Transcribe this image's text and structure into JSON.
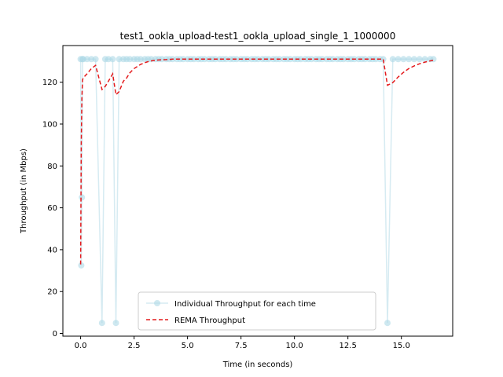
{
  "chart_data": {
    "type": "line",
    "title": "test1_ookla_upload-test1_ookla_upload_single_1_1000000",
    "xlabel": "Time (in seconds)",
    "ylabel": "Throughput (in Mbps)",
    "xlim": [
      -0.83,
      17.4
    ],
    "ylim": [
      -1.3,
      137.5
    ],
    "xticks": [
      0.0,
      2.5,
      5.0,
      7.5,
      10.0,
      12.5,
      15.0
    ],
    "xtick_labels": [
      "0.0",
      "2.5",
      "5.0",
      "7.5",
      "10.0",
      "12.5",
      "15.0"
    ],
    "yticks": [
      0,
      20,
      40,
      60,
      80,
      100,
      120
    ],
    "ytick_labels": [
      "0",
      "20",
      "40",
      "60",
      "80",
      "100",
      "120"
    ],
    "grid": false,
    "legend_position": "bottom-center",
    "series": [
      {
        "name": "Individual Throughput for each time",
        "style": "line-with-markers",
        "color": "#add8e6",
        "x": [
          0.0,
          0.03,
          0.06,
          0.09,
          0.12,
          0.3,
          0.5,
          0.7,
          1.0,
          1.15,
          1.3,
          1.5,
          1.65,
          1.8,
          2.0,
          2.15,
          2.3,
          2.5,
          2.65,
          2.8,
          3.0,
          3.15,
          3.3,
          3.5,
          3.65,
          3.8,
          4.0,
          4.15,
          4.3,
          4.5,
          4.65,
          4.8,
          5.0,
          5.15,
          5.3,
          5.5,
          5.65,
          5.8,
          6.0,
          6.15,
          6.3,
          6.5,
          6.65,
          6.8,
          7.0,
          7.15,
          7.3,
          7.5,
          7.65,
          7.8,
          8.0,
          8.15,
          8.3,
          8.5,
          8.65,
          8.8,
          9.0,
          9.15,
          9.3,
          9.5,
          9.65,
          9.8,
          10.0,
          10.15,
          10.3,
          10.5,
          10.65,
          10.8,
          11.0,
          11.15,
          11.3,
          11.5,
          11.65,
          11.8,
          12.0,
          12.15,
          12.3,
          12.5,
          12.65,
          12.8,
          13.0,
          13.15,
          13.3,
          13.5,
          13.65,
          13.8,
          14.0,
          14.15,
          14.35,
          14.6,
          14.85,
          15.1,
          15.35,
          15.6,
          15.85,
          16.1,
          16.35,
          16.5
        ],
        "y": [
          131,
          32.5,
          65,
          131,
          131,
          131,
          131,
          131,
          5,
          131,
          131,
          131,
          5,
          131,
          131,
          131,
          131,
          131,
          131,
          131,
          131,
          131,
          131,
          131,
          131,
          131,
          131,
          131,
          131,
          131,
          131,
          131,
          131,
          131,
          131,
          131,
          131,
          131,
          131,
          131,
          131,
          131,
          131,
          131,
          131,
          131,
          131,
          131,
          131,
          131,
          131,
          131,
          131,
          131,
          131,
          131,
          131,
          131,
          131,
          131,
          131,
          131,
          131,
          131,
          131,
          131,
          131,
          131,
          131,
          131,
          131,
          131,
          131,
          131,
          131,
          131,
          131,
          131,
          131,
          131,
          131,
          131,
          131,
          131,
          131,
          131,
          131,
          131,
          5,
          131,
          131,
          131,
          131,
          131,
          131,
          131,
          131,
          131
        ]
      },
      {
        "name": "REMA Throughput",
        "style": "dashed-line",
        "color": "#e41a1c",
        "x": [
          0.0,
          0.03,
          0.06,
          0.09,
          0.12,
          0.3,
          0.5,
          0.7,
          1.0,
          1.15,
          1.3,
          1.5,
          1.65,
          1.8,
          2.0,
          2.15,
          2.3,
          2.5,
          2.65,
          2.8,
          3.0,
          3.15,
          3.3,
          3.5,
          3.65,
          3.8,
          4.0,
          4.15,
          4.3,
          4.5,
          4.65,
          4.8,
          5.0,
          5.15,
          5.3,
          5.5,
          5.65,
          5.8,
          6.0,
          6.15,
          6.3,
          6.5,
          6.65,
          6.8,
          7.0,
          7.15,
          7.3,
          7.5,
          7.65,
          7.8,
          8.0,
          8.15,
          8.3,
          8.5,
          8.65,
          8.8,
          9.0,
          9.15,
          9.3,
          9.5,
          9.65,
          9.8,
          10.0,
          10.15,
          10.3,
          10.5,
          10.65,
          10.8,
          11.0,
          11.15,
          11.3,
          11.5,
          11.65,
          11.8,
          12.0,
          12.15,
          12.3,
          12.5,
          12.65,
          12.8,
          13.0,
          13.15,
          13.3,
          13.5,
          13.65,
          13.8,
          14.0,
          14.15,
          14.35,
          14.6,
          14.85,
          15.1,
          15.35,
          15.6,
          15.85,
          16.1,
          16.35,
          16.5
        ],
        "y": [
          33,
          91,
          112,
          121,
          122,
          124,
          126.5,
          128,
          116.5,
          118,
          120.5,
          124,
          114,
          115.5,
          120.5,
          122,
          124.5,
          126.5,
          127.5,
          128.5,
          129.3,
          129.8,
          130.2,
          130.5,
          130.6,
          130.7,
          130.8,
          130.9,
          131,
          131,
          131,
          131,
          131,
          131,
          131,
          131,
          131,
          131,
          131,
          131,
          131,
          131,
          131,
          131,
          131,
          131,
          131,
          131,
          131,
          131,
          131,
          131,
          131,
          131,
          131,
          131,
          131,
          131,
          131,
          131,
          131,
          131,
          131,
          131,
          131,
          131,
          131,
          131,
          131,
          131,
          131,
          131,
          131,
          131,
          131,
          131,
          131,
          131,
          131,
          131,
          131,
          131,
          131,
          131,
          131,
          131,
          131,
          131,
          118.5,
          119.8,
          122.5,
          124.7,
          126.5,
          127.8,
          128.8,
          129.6,
          130.2,
          130.5
        ]
      }
    ]
  }
}
